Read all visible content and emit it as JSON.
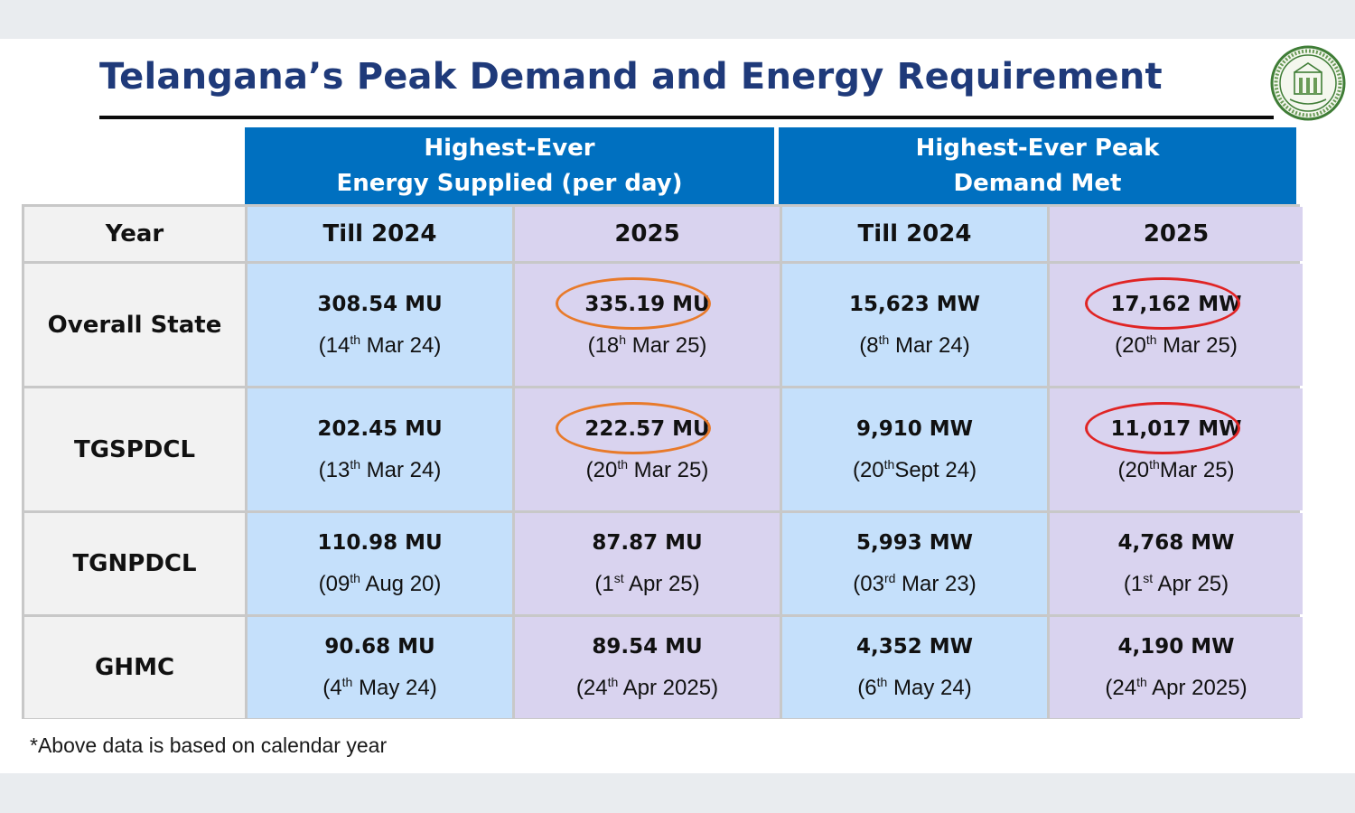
{
  "title": "Telangana’s Peak Demand and Energy Requirement",
  "groups": {
    "energy": {
      "line1": "Highest-Ever",
      "line2": "Energy Supplied (per day)"
    },
    "demand": {
      "line1": "Highest-Ever Peak",
      "line2": "Demand Met"
    }
  },
  "columns": [
    "Year",
    "Till 2024",
    "2025",
    "Till 2024",
    "2025"
  ],
  "rows": [
    {
      "label": "Overall State",
      "cells": [
        {
          "value": "308.54 MU",
          "day": "14",
          "suffix": "th",
          "rest": " Mar 24)"
        },
        {
          "value": "335.19 MU",
          "day": "18",
          "suffix": "h",
          "rest": " Mar 25)"
        },
        {
          "value": "15,623 MW",
          "day": "8",
          "suffix": "th",
          "rest": " Mar 24)"
        },
        {
          "value": "17,162 MW",
          "day": "20",
          "suffix": "th",
          "rest": " Mar 25)"
        }
      ]
    },
    {
      "label": "TGSPDCL",
      "cells": [
        {
          "value": "202.45 MU",
          "day": "13",
          "suffix": "th",
          "rest": " Mar 24)"
        },
        {
          "value": "222.57 MU",
          "day": "20",
          "suffix": "th",
          "rest": " Mar 25)"
        },
        {
          "value": "9,910 MW",
          "day": "20",
          "suffix": "th",
          "rest": "Sept 24)"
        },
        {
          "value": "11,017 MW",
          "day": "20",
          "suffix": "th",
          "rest": "Mar 25)"
        }
      ]
    },
    {
      "label": "TGNPDCL",
      "cells": [
        {
          "value": "110.98 MU",
          "day": "09",
          "suffix": "th",
          "rest": " Aug 20)"
        },
        {
          "value": "87.87 MU",
          "day": "1",
          "suffix": "st",
          "rest": " Apr 25)"
        },
        {
          "value": "5,993 MW",
          "day": "03",
          "suffix": "rd",
          "rest": " Mar 23)"
        },
        {
          "value": "4,768 MW",
          "day": "1",
          "suffix": "st",
          "rest": " Apr 25)"
        }
      ]
    },
    {
      "label": "GHMC",
      "cells": [
        {
          "value": "90.68 MU",
          "day": "4",
          "suffix": "th",
          "rest": " May 24)"
        },
        {
          "value": "89.54 MU",
          "day": "24",
          "suffix": "th",
          "rest": " Apr 2025)"
        },
        {
          "value": "4,352 MW",
          "day": "6",
          "suffix": "th",
          "rest": " May 24)"
        },
        {
          "value": "4,190 MW",
          "day": "24",
          "suffix": "th",
          "rest": " Apr 2025)"
        }
      ]
    }
  ],
  "highlights": {
    "energy_ring_color": "#e87a2a",
    "demand_ring_color": "#e02424"
  },
  "footnote": "*Above data is based on calendar year",
  "emblem_icon": "government-of-telangana-emblem-icon"
}
